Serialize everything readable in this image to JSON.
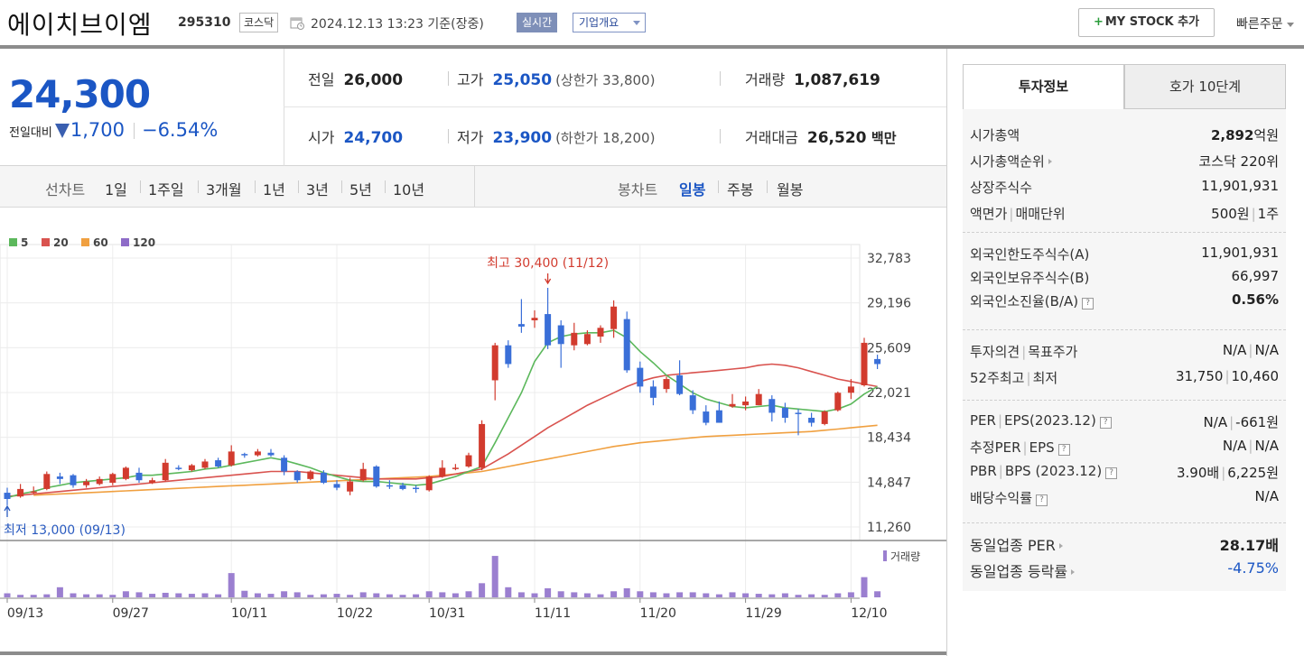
{
  "header": {
    "name": "에이치브이엠",
    "code": "295310",
    "market": "코스닥",
    "datetime": "2024.12.13 13:23",
    "basis": "기준(장중)",
    "realtime": "실시간",
    "overview": "기업개요",
    "mystock": "MY STOCK 추가",
    "mystock_plus": "+",
    "quick_order": "빠른주문"
  },
  "price": {
    "current": "24,300",
    "change_label": "전일대비",
    "change_amount": "1,700",
    "change_pct": "−6.54%",
    "prev_label": "전일",
    "prev": "26,000",
    "open_label": "시가",
    "open": "24,700",
    "high_label": "고가",
    "high": "25,050",
    "upper_limit": "(상한가 33,800)",
    "low_label": "저가",
    "low": "23,900",
    "lower_limit": "(하한가 18,200)",
    "volume_label": "거래량",
    "volume": "1,087,619",
    "amount_label": "거래대금",
    "amount": "26,520",
    "amount_unit": "백만"
  },
  "controls": {
    "line_label": "선차트",
    "line_periods": [
      "1일",
      "1주일",
      "3개월",
      "1년",
      "3년",
      "5년",
      "10년"
    ],
    "candle_label": "봉차트",
    "candle_periods": [
      "일봉",
      "주봉",
      "월봉"
    ],
    "active_candle": "일봉"
  },
  "chart_data": {
    "type": "candlestick",
    "legend": [
      {
        "name": "5",
        "color": "#5cb85c"
      },
      {
        "name": "20",
        "color": "#d9534f"
      },
      {
        "name": "60",
        "color": "#f0a040"
      },
      {
        "name": "120",
        "color": "#8e6cc8"
      }
    ],
    "y_ticks": [
      "32,783",
      "29,196",
      "25,609",
      "22,021",
      "18,434",
      "14,847",
      "11,260"
    ],
    "y_tick_values": [
      32783,
      29196,
      25609,
      22021,
      18434,
      14847,
      11260
    ],
    "ylim": [
      11260,
      32783
    ],
    "x_labels": [
      {
        "label": "09/13",
        "index": 0
      },
      {
        "label": "09/27",
        "index": 8
      },
      {
        "label": "10/11",
        "index": 17
      },
      {
        "label": "10/22",
        "index": 25
      },
      {
        "label": "10/31",
        "index": 32
      },
      {
        "label": "11/11",
        "index": 40
      },
      {
        "label": "11/20",
        "index": 48
      },
      {
        "label": "11/29",
        "index": 56
      },
      {
        "label": "12/10",
        "index": 64
      }
    ],
    "high_annotation": "최고 30,400 (11/12)",
    "high_index": 41,
    "low_annotation": "최저 13,000 (09/13)",
    "low_index": 0,
    "volume_label": "거래량",
    "candles": [
      {
        "o": 14000,
        "h": 14400,
        "l": 13000,
        "c": 13500
      },
      {
        "o": 13700,
        "h": 14700,
        "l": 13600,
        "c": 14300
      },
      {
        "o": 14000,
        "h": 14500,
        "l": 13900,
        "c": 14100
      },
      {
        "o": 14300,
        "h": 15700,
        "l": 14200,
        "c": 15500
      },
      {
        "o": 15300,
        "h": 15600,
        "l": 14700,
        "c": 15100
      },
      {
        "o": 15400,
        "h": 15500,
        "l": 14400,
        "c": 14600
      },
      {
        "o": 14600,
        "h": 15100,
        "l": 14400,
        "c": 14900
      },
      {
        "o": 14700,
        "h": 15300,
        "l": 14600,
        "c": 15100
      },
      {
        "o": 14800,
        "h": 15600,
        "l": 14600,
        "c": 15500
      },
      {
        "o": 15100,
        "h": 16100,
        "l": 15000,
        "c": 16000
      },
      {
        "o": 15600,
        "h": 16000,
        "l": 14800,
        "c": 15000
      },
      {
        "o": 14800,
        "h": 15200,
        "l": 14700,
        "c": 15000
      },
      {
        "o": 15000,
        "h": 16700,
        "l": 14900,
        "c": 16400
      },
      {
        "o": 16000,
        "h": 16200,
        "l": 15800,
        "c": 15900
      },
      {
        "o": 15800,
        "h": 16300,
        "l": 15700,
        "c": 16200
      },
      {
        "o": 16000,
        "h": 16700,
        "l": 15900,
        "c": 16500
      },
      {
        "o": 16600,
        "h": 16800,
        "l": 16000,
        "c": 16100
      },
      {
        "o": 16200,
        "h": 17800,
        "l": 16100,
        "c": 17300
      },
      {
        "o": 17100,
        "h": 17200,
        "l": 16800,
        "c": 17000
      },
      {
        "o": 17000,
        "h": 17500,
        "l": 16900,
        "c": 17300
      },
      {
        "o": 17200,
        "h": 17500,
        "l": 16900,
        "c": 17000
      },
      {
        "o": 16800,
        "h": 17000,
        "l": 15400,
        "c": 15700
      },
      {
        "o": 15700,
        "h": 15800,
        "l": 14800,
        "c": 15000
      },
      {
        "o": 15100,
        "h": 15800,
        "l": 15000,
        "c": 15700
      },
      {
        "o": 15600,
        "h": 15800,
        "l": 14700,
        "c": 14800
      },
      {
        "o": 14700,
        "h": 15000,
        "l": 14200,
        "c": 14400
      },
      {
        "o": 14100,
        "h": 15200,
        "l": 13800,
        "c": 14900
      },
      {
        "o": 15000,
        "h": 16400,
        "l": 14900,
        "c": 15900
      },
      {
        "o": 16100,
        "h": 16200,
        "l": 14400,
        "c": 14500
      },
      {
        "o": 14600,
        "h": 15000,
        "l": 14300,
        "c": 14500
      },
      {
        "o": 14600,
        "h": 14800,
        "l": 14200,
        "c": 14300
      },
      {
        "o": 14400,
        "h": 14600,
        "l": 14000,
        "c": 14300
      },
      {
        "o": 14200,
        "h": 15400,
        "l": 14100,
        "c": 15300
      },
      {
        "o": 15300,
        "h": 16600,
        "l": 15200,
        "c": 16000
      },
      {
        "o": 15900,
        "h": 16300,
        "l": 15800,
        "c": 16000
      },
      {
        "o": 16100,
        "h": 17200,
        "l": 16000,
        "c": 17000
      },
      {
        "o": 16000,
        "h": 19800,
        "l": 15800,
        "c": 19500
      },
      {
        "o": 23000,
        "h": 26000,
        "l": 21400,
        "c": 25800
      },
      {
        "o": 25800,
        "h": 26200,
        "l": 24000,
        "c": 24300
      },
      {
        "o": 27500,
        "h": 29500,
        "l": 26800,
        "c": 27300
      },
      {
        "o": 27800,
        "h": 28600,
        "l": 27200,
        "c": 28000
      },
      {
        "o": 28300,
        "h": 30400,
        "l": 25500,
        "c": 25800
      },
      {
        "o": 27400,
        "h": 27800,
        "l": 24000,
        "c": 25900
      },
      {
        "o": 25800,
        "h": 27600,
        "l": 25400,
        "c": 26800
      },
      {
        "o": 25900,
        "h": 27000,
        "l": 25800,
        "c": 26700
      },
      {
        "o": 26500,
        "h": 27400,
        "l": 26000,
        "c": 27200
      },
      {
        "o": 27100,
        "h": 29400,
        "l": 26400,
        "c": 28900
      },
      {
        "o": 27900,
        "h": 28500,
        "l": 23600,
        "c": 23800
      },
      {
        "o": 24000,
        "h": 24500,
        "l": 22000,
        "c": 22500
      },
      {
        "o": 22500,
        "h": 23000,
        "l": 21000,
        "c": 21600
      },
      {
        "o": 22300,
        "h": 23300,
        "l": 22000,
        "c": 23100
      },
      {
        "o": 23400,
        "h": 24600,
        "l": 21800,
        "c": 21900
      },
      {
        "o": 21800,
        "h": 22200,
        "l": 20300,
        "c": 20600
      },
      {
        "o": 20500,
        "h": 21000,
        "l": 19400,
        "c": 19600
      },
      {
        "o": 20600,
        "h": 21300,
        "l": 19600,
        "c": 19600
      },
      {
        "o": 20900,
        "h": 21900,
        "l": 20800,
        "c": 21100
      },
      {
        "o": 21000,
        "h": 21700,
        "l": 20600,
        "c": 21300
      },
      {
        "o": 21000,
        "h": 22300,
        "l": 21000,
        "c": 21900
      },
      {
        "o": 21500,
        "h": 21800,
        "l": 19700,
        "c": 20400
      },
      {
        "o": 20800,
        "h": 21200,
        "l": 19600,
        "c": 20000
      },
      {
        "o": 20400,
        "h": 20700,
        "l": 18600,
        "c": 20300
      },
      {
        "o": 20000,
        "h": 20400,
        "l": 19300,
        "c": 19600
      },
      {
        "o": 19500,
        "h": 20600,
        "l": 19400,
        "c": 20500
      },
      {
        "o": 20600,
        "h": 22100,
        "l": 20500,
        "c": 22000
      },
      {
        "o": 22000,
        "h": 23100,
        "l": 21500,
        "c": 22500
      },
      {
        "o": 22600,
        "h": 26400,
        "l": 22500,
        "c": 26000
      },
      {
        "o": 24700,
        "h": 25050,
        "l": 23900,
        "c": 24300
      }
    ],
    "ma5": [
      13600,
      13900,
      14100,
      14400,
      14600,
      14800,
      14900,
      15000,
      15100,
      15200,
      15400,
      15400,
      15500,
      15600,
      15700,
      15900,
      16000,
      16200,
      16400,
      16600,
      16800,
      16600,
      16300,
      16000,
      15600,
      15300,
      15000,
      14900,
      14900,
      14800,
      14700,
      14600,
      14700,
      15000,
      15300,
      15700,
      16100,
      18000,
      20000,
      22000,
      24500,
      26000,
      26500,
      26700,
      26800,
      26800,
      27000,
      26400,
      25300,
      24400,
      23400,
      22700,
      22000,
      21500,
      21200,
      20900,
      20800,
      20900,
      21000,
      20800,
      20700,
      20600,
      20500,
      20700,
      21100,
      21900,
      22500
    ],
    "ma20": [
      13700,
      13800,
      13900,
      14000,
      14100,
      14200,
      14300,
      14400,
      14500,
      14600,
      14700,
      14800,
      14900,
      15000,
      15100,
      15200,
      15300,
      15400,
      15500,
      15600,
      15700,
      15700,
      15700,
      15600,
      15500,
      15400,
      15300,
      15200,
      15100,
      15100,
      15100,
      15100,
      15200,
      15300,
      15500,
      15700,
      15900,
      16500,
      17100,
      17800,
      18500,
      19200,
      19800,
      20400,
      21000,
      21500,
      22000,
      22500,
      22900,
      23200,
      23400,
      23500,
      23600,
      23700,
      23800,
      23900,
      24000,
      24200,
      24300,
      24200,
      24000,
      23700,
      23400,
      23100,
      22900,
      22700,
      22500
    ],
    "ma60": [
      null,
      null,
      13800,
      13850,
      13900,
      13950,
      14000,
      14050,
      14100,
      14150,
      14200,
      14250,
      14300,
      14350,
      14400,
      14450,
      14500,
      14550,
      14600,
      14650,
      14700,
      14750,
      14800,
      14850,
      14900,
      14950,
      15000,
      15050,
      15100,
      15150,
      15200,
      15250,
      15300,
      15400,
      15500,
      15600,
      15700,
      15900,
      16100,
      16300,
      16500,
      16700,
      16900,
      17100,
      17300,
      17500,
      17700,
      17850,
      18000,
      18100,
      18200,
      18300,
      18400,
      18500,
      18550,
      18600,
      18650,
      18700,
      18750,
      18800,
      18850,
      18900,
      19000,
      19100,
      19200,
      19300,
      19400
    ],
    "volumes": [
      0.08,
      0.05,
      0.05,
      0.06,
      0.2,
      0.08,
      0.06,
      0.06,
      0.05,
      0.12,
      0.1,
      0.07,
      0.09,
      0.08,
      0.07,
      0.08,
      0.06,
      0.48,
      0.13,
      0.08,
      0.07,
      0.12,
      0.1,
      0.05,
      0.06,
      0.07,
      0.05,
      0.1,
      0.08,
      0.06,
      0.05,
      0.06,
      0.12,
      0.1,
      0.08,
      0.12,
      0.28,
      0.82,
      0.2,
      0.1,
      0.08,
      0.18,
      0.12,
      0.1,
      0.08,
      0.06,
      0.12,
      0.18,
      0.12,
      0.1,
      0.08,
      0.1,
      0.1,
      0.08,
      0.06,
      0.1,
      0.08,
      0.07,
      0.06,
      0.08,
      0.05,
      0.06,
      0.05,
      0.08,
      0.1,
      0.4,
      0.12
    ]
  },
  "side": {
    "tab_active": "투자정보",
    "tab_inactive": "호가 10단계",
    "section1": [
      {
        "k": "시가총액",
        "v": "2,892",
        "unit": "억원",
        "bold": true
      },
      {
        "k": "시가총액순위",
        "v": "코스닥 220위",
        "arrow": true
      },
      {
        "k": "상장주식수",
        "v": "11,901,931"
      },
      {
        "k": "액면가",
        "k2": "매매단위",
        "v": "500원",
        "v2": "1주"
      }
    ],
    "section2": [
      {
        "k": "외국인한도주식수(A)",
        "v": "11,901,931"
      },
      {
        "k": "외국인보유주식수(B)",
        "v": "66,997"
      },
      {
        "k": "외국인소진율(B/A)",
        "v": "0.56%",
        "bold": true,
        "help": "?"
      }
    ],
    "section3": [
      {
        "k": "투자의견",
        "k2": "목표주가",
        "v": "N/A",
        "v2": "N/A"
      },
      {
        "k": "52주최고",
        "k2": "최저",
        "v": "31,750",
        "v2": "10,460"
      }
    ],
    "section4": [
      {
        "k": "PER",
        "k2": "EPS(2023.12)",
        "v": "N/A",
        "v2": "-661원",
        "help": "?"
      },
      {
        "k": "추정PER",
        "k2": "EPS",
        "v": "N/A",
        "v2": "N/A",
        "help": "?"
      },
      {
        "k": "PBR",
        "k2": "BPS (2023.12)",
        "v": "3.90배",
        "v2": "6,225원",
        "help": "?"
      },
      {
        "k": "배당수익률",
        "v": "N/A",
        "help": "?"
      }
    ],
    "section5": [
      {
        "k": "동일업종 PER",
        "v": "28.17배",
        "bold": true,
        "arrow": true
      },
      {
        "k": "동일업종 등락률",
        "v": "-4.75%",
        "blue": true,
        "arrow": true
      }
    ]
  }
}
